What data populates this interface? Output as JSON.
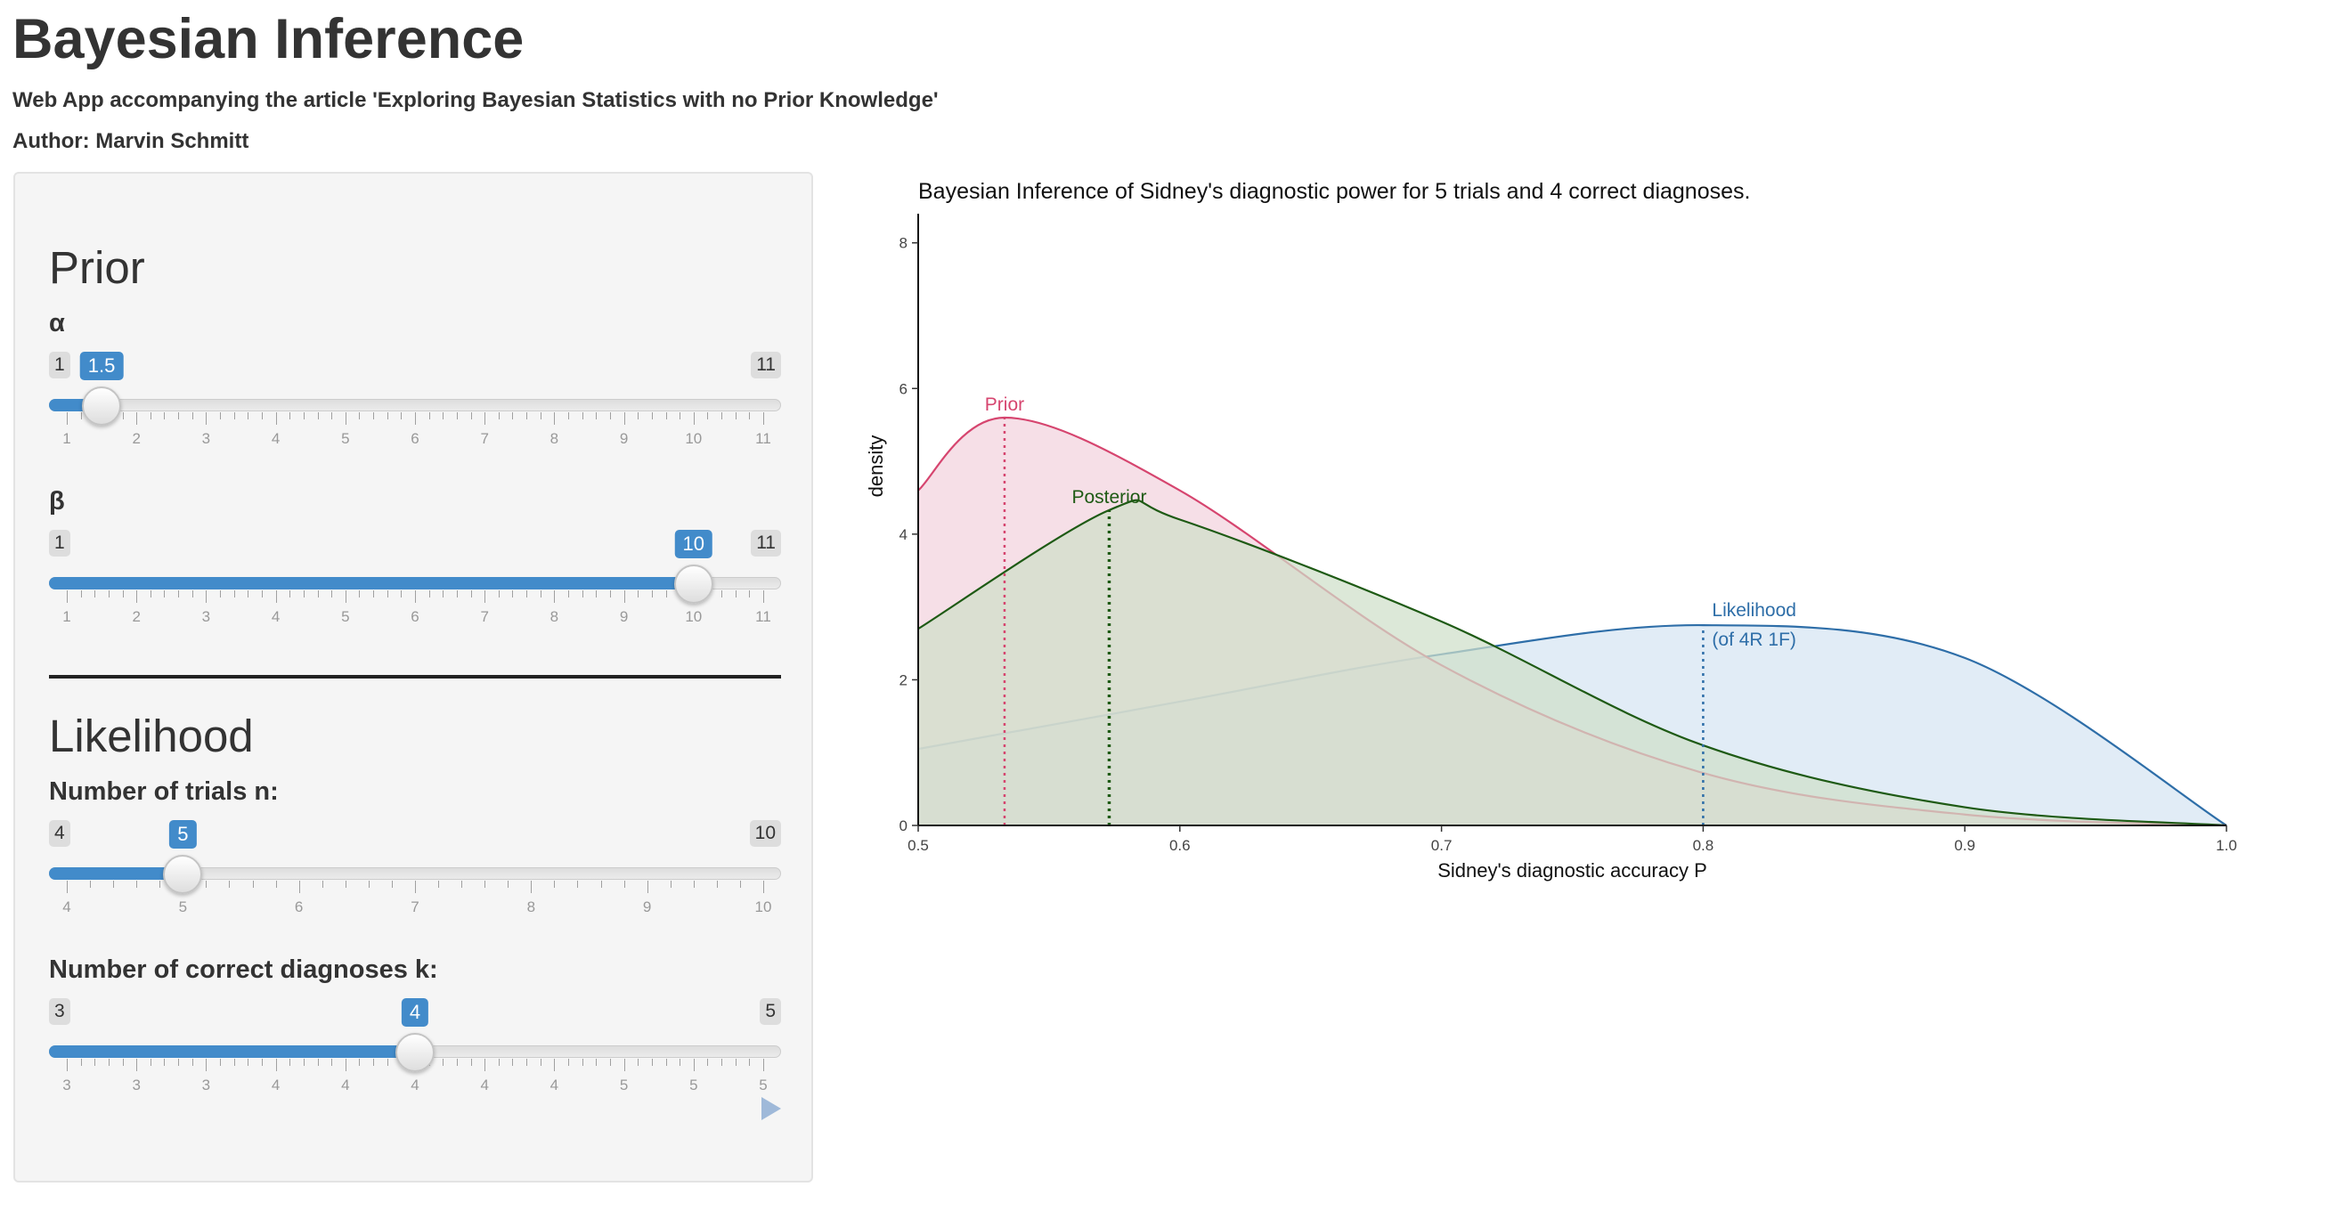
{
  "app": {
    "title": "Bayesian Inference",
    "subtitle": "Web App accompanying the article 'Exploring Bayesian Statistics with no Prior Knowledge'",
    "author": "Author: Marvin Schmitt"
  },
  "sidebar": {
    "prior_title": "Prior",
    "likelihood_title": "Likelihood",
    "play_icon": "play-icon",
    "sliders": [
      {
        "id": "alpha",
        "label": "α",
        "min": 1,
        "max": 11,
        "value": 1.5,
        "min_label": "1",
        "max_label": "11",
        "value_label": "1.5",
        "tick_labels": [
          "1",
          "2",
          "3",
          "4",
          "5",
          "6",
          "7",
          "8",
          "9",
          "10",
          "11"
        ],
        "minor_per_major": 4
      },
      {
        "id": "beta",
        "label": "β",
        "min": 1,
        "max": 11,
        "value": 10,
        "min_label": "1",
        "max_label": "11",
        "value_label": "10",
        "tick_labels": [
          "1",
          "2",
          "3",
          "4",
          "5",
          "6",
          "7",
          "8",
          "9",
          "10",
          "11"
        ],
        "minor_per_major": 4
      },
      {
        "id": "trials",
        "label": "Number of trials n:",
        "min": 4,
        "max": 10,
        "value": 5,
        "min_label": "4",
        "max_label": "10",
        "value_label": "5",
        "tick_labels": [
          "4",
          "5",
          "6",
          "7",
          "8",
          "9",
          "10"
        ],
        "minor_per_major": 4
      },
      {
        "id": "correct",
        "label": "Number of correct diagnoses k:",
        "min": 3,
        "max": 5,
        "value": 4,
        "min_label": "3",
        "max_label": "5",
        "value_label": "4",
        "tick_labels": [
          "3",
          "3",
          "3",
          "4",
          "4",
          "4",
          "4",
          "4",
          "5",
          "5",
          "5"
        ],
        "minor_per_major": 4
      }
    ]
  },
  "chart_data": {
    "type": "area",
    "title": "Bayesian Inference of Sidney's diagnostic power for 5 trials and 4 correct diagnoses.",
    "xlabel": "Sidney's diagnostic accuracy P",
    "ylabel": "density",
    "xlim": [
      0.5,
      1.0
    ],
    "ylim": [
      0,
      8.4
    ],
    "x_ticks": [
      0.5,
      0.6,
      0.7,
      0.8,
      0.9,
      1.0
    ],
    "x_tick_labels": [
      "0.5",
      "0.6",
      "0.7",
      "0.8",
      "0.9",
      "1.0"
    ],
    "y_ticks": [
      0,
      2,
      4,
      6,
      8
    ],
    "y_tick_labels": [
      "0",
      "2",
      "4",
      "6",
      "8"
    ],
    "grid": false,
    "series": [
      {
        "name": "Prior",
        "color": "#d6456f",
        "fill": "#f2d3de",
        "x": [
          0.5,
          0.533,
          0.6,
          0.7,
          0.8,
          0.9,
          1.0
        ],
        "y": [
          4.6,
          5.6,
          4.6,
          2.2,
          0.72,
          0.15,
          0.0
        ],
        "mode_x": 0.533,
        "label_lines": [
          "Prior"
        ]
      },
      {
        "name": "Posterior",
        "color": "#1e5a14",
        "fill": "#cfdfc9",
        "x": [
          0.5,
          0.573,
          0.6,
          0.7,
          0.8,
          0.9,
          1.0
        ],
        "y": [
          2.7,
          4.33,
          4.2,
          2.8,
          1.1,
          0.25,
          0.0
        ],
        "mode_x": 0.573,
        "label_lines": [
          "Posterior"
        ]
      },
      {
        "name": "Likelihood",
        "color": "#2e6ea8",
        "fill": "#d6e5f3",
        "x": [
          0.5,
          0.6,
          0.7,
          0.8,
          0.9,
          1.0
        ],
        "y": [
          1.05,
          1.7,
          2.35,
          2.75,
          2.3,
          0.0
        ],
        "mode_x": 0.8,
        "label_lines": [
          "Likelihood",
          "(of 4R 1F)"
        ]
      }
    ]
  }
}
